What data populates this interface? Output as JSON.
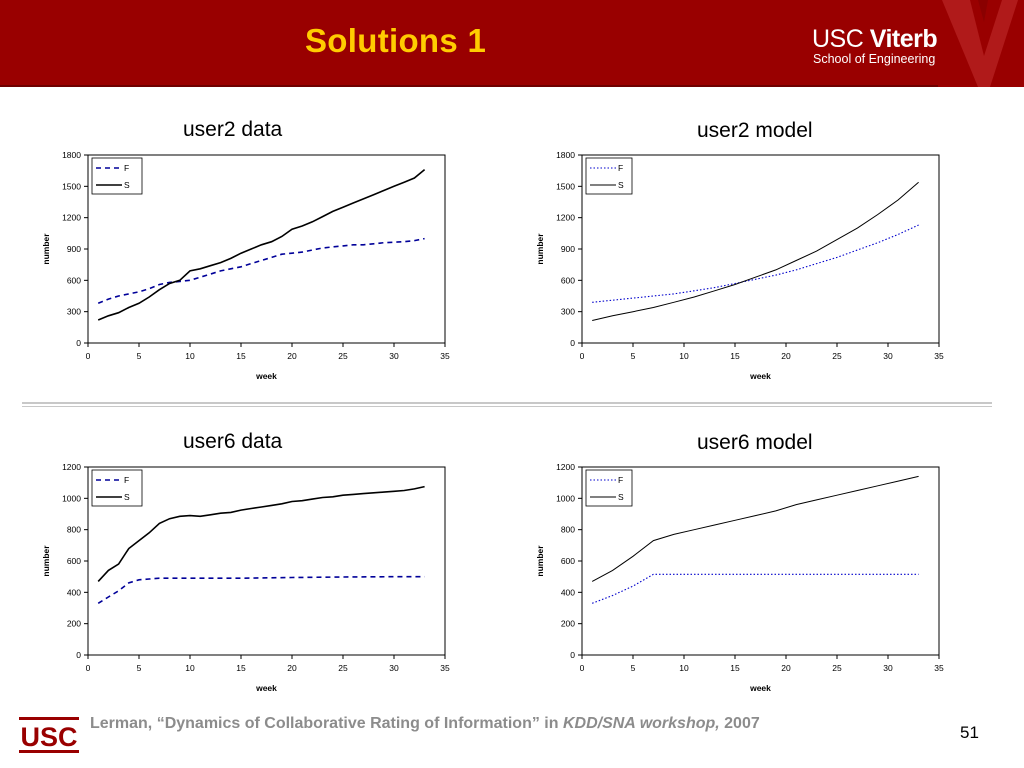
{
  "slide": {
    "title": "Solutions 1",
    "logo_usc": "USC",
    "logo_viterbi": "Viterbi",
    "logo_school": "School of Engineering",
    "footer_logo": "USC",
    "citation_plain": "Lerman, “Dynamics of Collaborative Rating of Information” in ",
    "citation_italic": "KDD/SNA workshop,",
    "citation_year": " 2007",
    "page_number": "51",
    "colors": {
      "header": "#990000",
      "title": "#ffcc00",
      "citation": "#8c8c8c",
      "f_series_data": "#000099",
      "f_series_model": "#0000cc"
    }
  },
  "chart_data": [
    {
      "type": "line",
      "title": "user2 data",
      "xlabel": "week",
      "ylabel": "number",
      "xlim": [
        0,
        35
      ],
      "ylim": [
        0,
        1800
      ],
      "xticks": [
        0,
        5,
        10,
        15,
        20,
        25,
        30,
        35
      ],
      "yticks": [
        0,
        300,
        600,
        900,
        1200,
        1500,
        1800
      ],
      "legend": "top-left",
      "series": [
        {
          "name": "F",
          "style": "dashed",
          "x": [
            1,
            2,
            3,
            4,
            5,
            6,
            7,
            8,
            9,
            10,
            11,
            12,
            13,
            14,
            15,
            16,
            17,
            18,
            19,
            20,
            21,
            22,
            23,
            24,
            25,
            26,
            27,
            28,
            29,
            30,
            31,
            32,
            33
          ],
          "y": [
            380,
            420,
            450,
            470,
            490,
            520,
            560,
            580,
            590,
            600,
            630,
            660,
            690,
            710,
            730,
            760,
            790,
            820,
            850,
            860,
            870,
            890,
            910,
            920,
            930,
            940,
            940,
            950,
            960,
            965,
            970,
            980,
            1000
          ]
        },
        {
          "name": "S",
          "style": "solid",
          "x": [
            1,
            2,
            3,
            4,
            5,
            6,
            7,
            8,
            9,
            10,
            11,
            12,
            13,
            14,
            15,
            16,
            17,
            18,
            19,
            20,
            21,
            22,
            23,
            24,
            25,
            26,
            27,
            28,
            29,
            30,
            31,
            32,
            33
          ],
          "y": [
            220,
            260,
            290,
            340,
            380,
            440,
            510,
            570,
            600,
            690,
            710,
            740,
            770,
            810,
            860,
            900,
            940,
            970,
            1020,
            1090,
            1120,
            1160,
            1210,
            1260,
            1300,
            1340,
            1380,
            1420,
            1460,
            1500,
            1540,
            1580,
            1660
          ]
        }
      ]
    },
    {
      "type": "line",
      "title": "user2 model",
      "xlabel": "week",
      "ylabel": "number",
      "xlim": [
        0,
        35
      ],
      "ylim": [
        0,
        1800
      ],
      "xticks": [
        0,
        5,
        10,
        15,
        20,
        25,
        30,
        35
      ],
      "yticks": [
        0,
        300,
        600,
        900,
        1200,
        1500,
        1800
      ],
      "legend": "top-left",
      "series": [
        {
          "name": "F",
          "style": "dotted",
          "x": [
            1,
            3,
            5,
            7,
            9,
            11,
            13,
            15,
            17,
            19,
            21,
            23,
            25,
            27,
            29,
            31,
            33
          ],
          "y": [
            390,
            410,
            430,
            450,
            470,
            500,
            530,
            570,
            610,
            650,
            700,
            760,
            820,
            890,
            960,
            1040,
            1130
          ]
        },
        {
          "name": "S",
          "style": "solid",
          "x": [
            1,
            3,
            5,
            7,
            9,
            11,
            13,
            15,
            17,
            19,
            21,
            23,
            25,
            27,
            29,
            31,
            33
          ],
          "y": [
            215,
            260,
            300,
            340,
            390,
            440,
            500,
            560,
            630,
            700,
            790,
            880,
            990,
            1100,
            1230,
            1370,
            1540
          ]
        }
      ]
    },
    {
      "type": "line",
      "title": "user6 data",
      "xlabel": "week",
      "ylabel": "number",
      "xlim": [
        0,
        35
      ],
      "ylim": [
        0,
        1200
      ],
      "xticks": [
        0,
        5,
        10,
        15,
        20,
        25,
        30,
        35
      ],
      "yticks": [
        0,
        200,
        400,
        600,
        800,
        1000,
        1200
      ],
      "legend": "top-left",
      "series": [
        {
          "name": "F",
          "style": "dashed",
          "x": [
            1,
            2,
            3,
            4,
            5,
            6,
            7,
            8,
            10,
            15,
            20,
            25,
            30,
            33
          ],
          "y": [
            330,
            370,
            410,
            460,
            480,
            485,
            490,
            490,
            490,
            490,
            495,
            498,
            500,
            500
          ]
        },
        {
          "name": "S",
          "style": "solid",
          "x": [
            1,
            2,
            3,
            4,
            5,
            6,
            7,
            8,
            9,
            10,
            11,
            12,
            13,
            14,
            15,
            16,
            17,
            18,
            19,
            20,
            21,
            22,
            23,
            24,
            25,
            26,
            27,
            28,
            29,
            30,
            31,
            32,
            33
          ],
          "y": [
            470,
            540,
            580,
            680,
            730,
            780,
            840,
            870,
            885,
            890,
            885,
            895,
            905,
            910,
            925,
            935,
            945,
            955,
            965,
            980,
            985,
            995,
            1005,
            1010,
            1020,
            1025,
            1030,
            1035,
            1040,
            1045,
            1050,
            1060,
            1075
          ]
        }
      ]
    },
    {
      "type": "line",
      "title": "user6 model",
      "xlabel": "week",
      "ylabel": "number",
      "xlim": [
        0,
        35
      ],
      "ylim": [
        0,
        1200
      ],
      "xticks": [
        0,
        5,
        10,
        15,
        20,
        25,
        30,
        35
      ],
      "yticks": [
        0,
        200,
        400,
        600,
        800,
        1000,
        1200
      ],
      "legend": "top-left",
      "series": [
        {
          "name": "F",
          "style": "dotted",
          "x": [
            1,
            3,
            5,
            7,
            8,
            10,
            15,
            20,
            25,
            30,
            33
          ],
          "y": [
            330,
            380,
            440,
            515,
            515,
            515,
            515,
            515,
            515,
            515,
            515
          ]
        },
        {
          "name": "S",
          "style": "solid",
          "x": [
            1,
            3,
            5,
            7,
            9,
            11,
            13,
            15,
            17,
            19,
            21,
            23,
            25,
            27,
            29,
            31,
            33
          ],
          "y": [
            470,
            540,
            630,
            730,
            770,
            800,
            830,
            860,
            890,
            920,
            960,
            990,
            1020,
            1050,
            1080,
            1110,
            1140
          ]
        }
      ]
    }
  ]
}
